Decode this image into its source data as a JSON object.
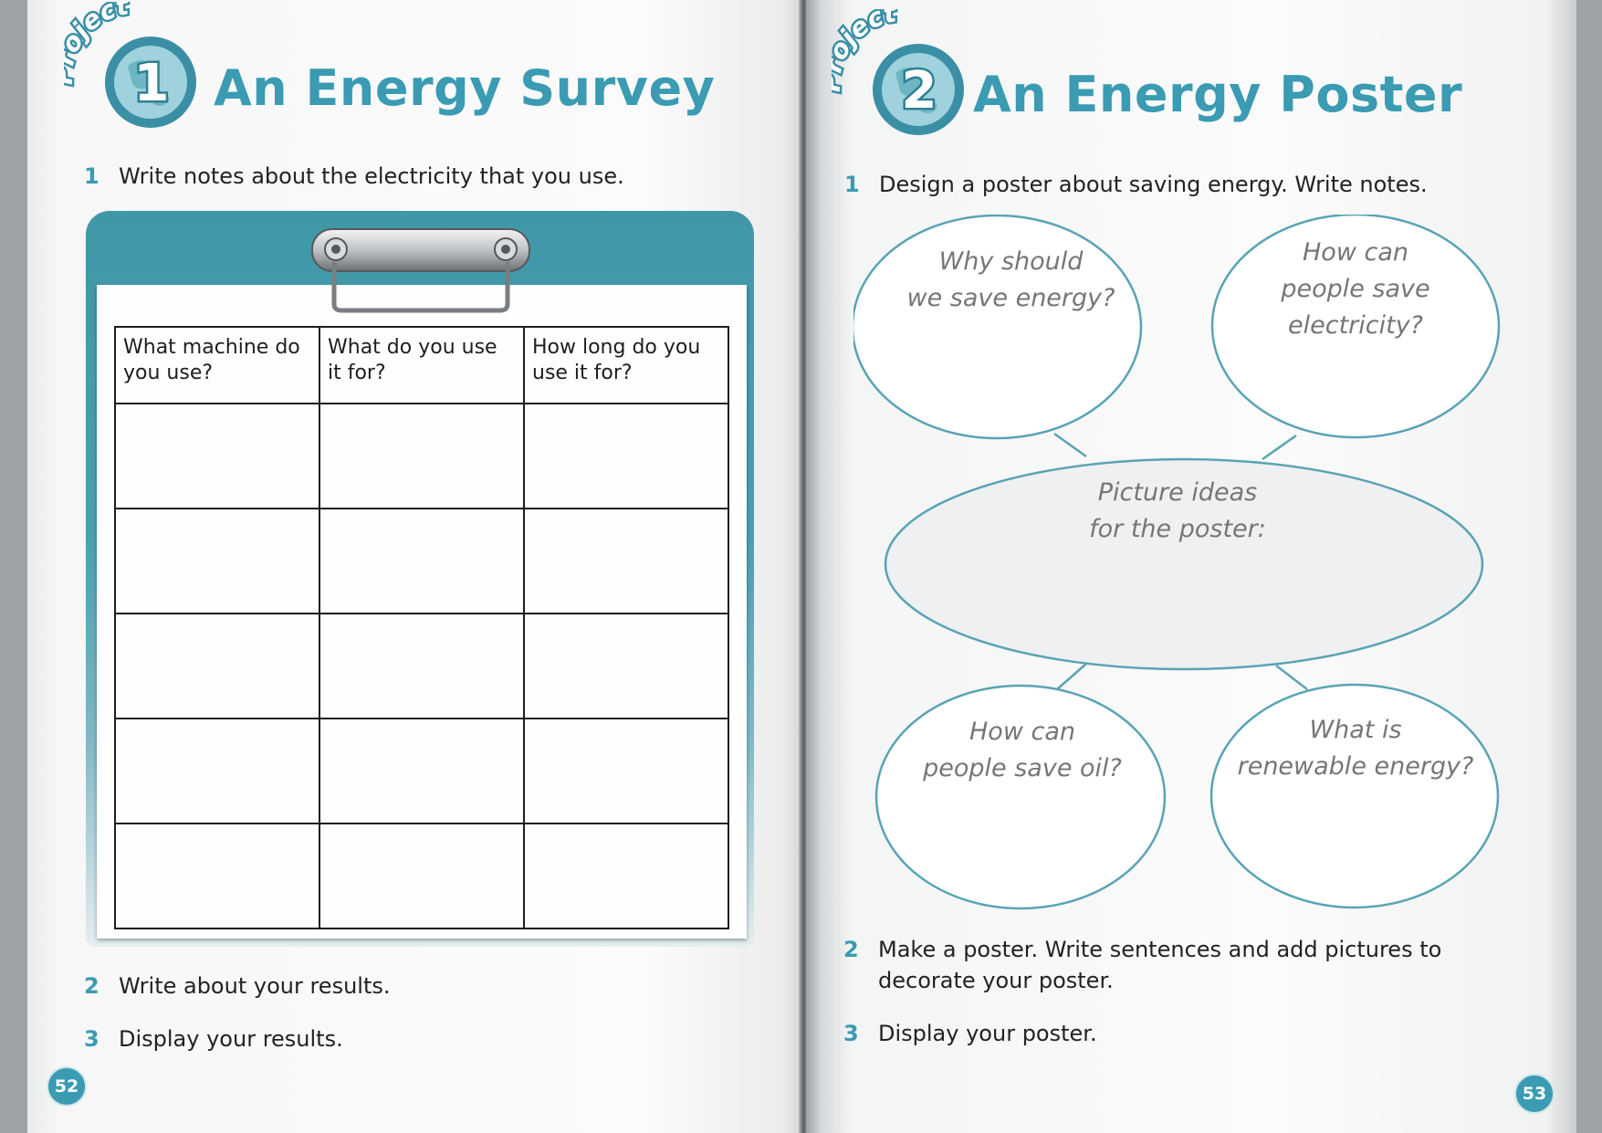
{
  "left_page": {
    "badge": {
      "word": "Project",
      "number": "1"
    },
    "title": "An Energy Survey",
    "instructions": [
      {
        "num": "1",
        "text": "Write notes about the electricity that you use."
      },
      {
        "num": "2",
        "text": "Write about your results."
      },
      {
        "num": "3",
        "text": "Display your results."
      }
    ],
    "table": {
      "headers": [
        "What machine do you use?",
        "What do you use it for?",
        "How long do you use it for?"
      ],
      "empty_rows": 5
    },
    "page_number": "52"
  },
  "right_page": {
    "badge": {
      "word": "Project",
      "number": "2"
    },
    "title": "An Energy Poster",
    "instructions": [
      {
        "num": "1",
        "text": "Design a poster about saving energy. Write notes."
      },
      {
        "num": "2",
        "text": "Make a poster. Write sentences and add pictures to decorate your poster."
      },
      {
        "num": "3",
        "text": "Display your poster."
      }
    ],
    "mind_map": {
      "center": "Picture ideas\nfor the poster:",
      "top_left": "Why should\nwe save energy?",
      "top_right": "How can\npeople save\nelectricity?",
      "bottom_left": "How can\npeople save oil?",
      "bottom_right": "What is\nrenewable energy?"
    },
    "page_number": "53"
  },
  "colors": {
    "accent": "#3a9bb2",
    "clipboard": "#4aa0b1",
    "text": "#222222",
    "handwriting": "#767676"
  }
}
